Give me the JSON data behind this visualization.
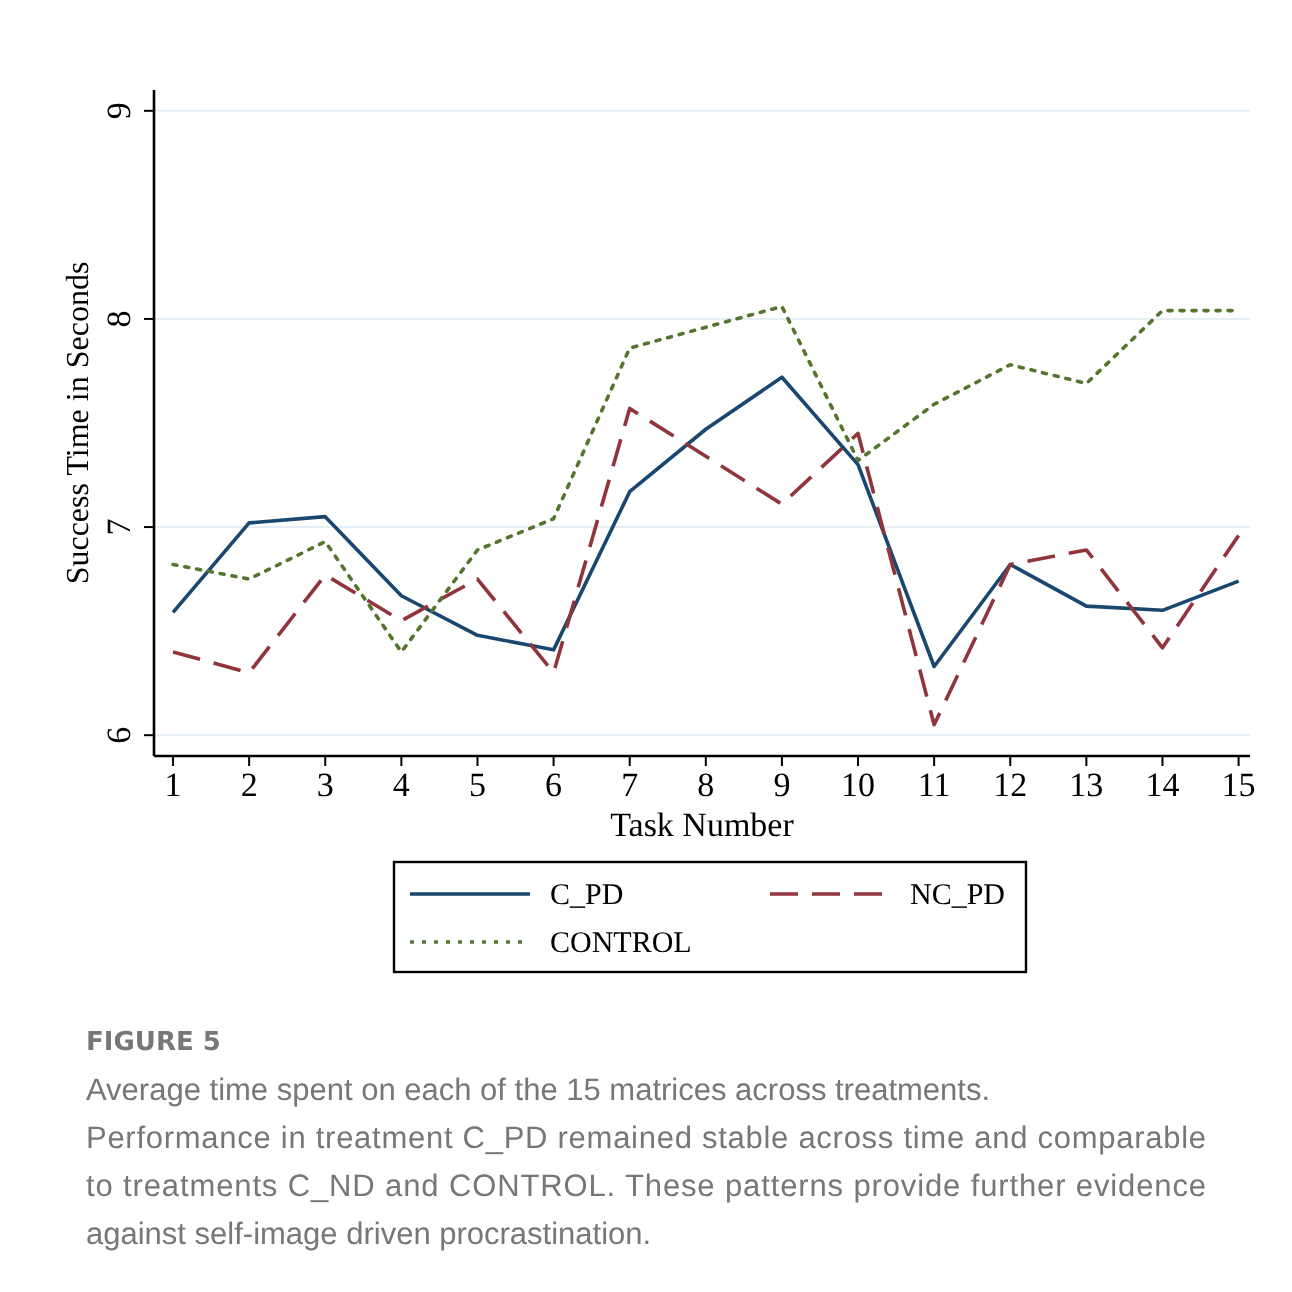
{
  "chart_data": {
    "type": "line",
    "xlabel": "Task Number",
    "ylabel": "Success Time in Seconds",
    "x": [
      1,
      2,
      3,
      4,
      5,
      6,
      7,
      8,
      9,
      10,
      11,
      12,
      13,
      14,
      15
    ],
    "xlim": [
      0.75,
      15.15
    ],
    "xticks": [
      1,
      2,
      3,
      4,
      5,
      6,
      7,
      8,
      9,
      10,
      11,
      12,
      13,
      14,
      15
    ],
    "ylim": [
      5.9,
      9.1
    ],
    "yticks": [
      6,
      7,
      8,
      9
    ],
    "grid": "y",
    "legend": "bottom",
    "series": [
      {
        "name": "C_PD",
        "color": "#1a476f",
        "line_style": "solid",
        "values": [
          6.59,
          7.02,
          7.05,
          6.67,
          6.48,
          6.41,
          7.17,
          7.47,
          7.72,
          7.3,
          6.33,
          6.82,
          6.62,
          6.6,
          6.74
        ]
      },
      {
        "name": "NC_PD",
        "color": "#90353b",
        "line_style": "dashed",
        "values": [
          6.4,
          6.3,
          6.77,
          6.55,
          6.75,
          6.3,
          7.57,
          7.34,
          7.11,
          7.45,
          6.05,
          6.82,
          6.89,
          6.42,
          6.96
        ]
      },
      {
        "name": "CONTROL",
        "color": "#55752f",
        "line_style": "dotted",
        "values": [
          6.82,
          6.75,
          6.93,
          6.4,
          6.89,
          7.04,
          7.86,
          7.96,
          8.06,
          7.32,
          7.59,
          7.78,
          7.69,
          8.04,
          8.04
        ]
      }
    ],
    "annotations": [
      "FIGURE 5",
      "Average time spent on each of the 15 matrices across treatments. Performance in treatment C_PD remained stable across time and comparable to treatments C_ND and CONTROL. These patterns provide further evidence against self-image driven procrastination."
    ]
  }
}
